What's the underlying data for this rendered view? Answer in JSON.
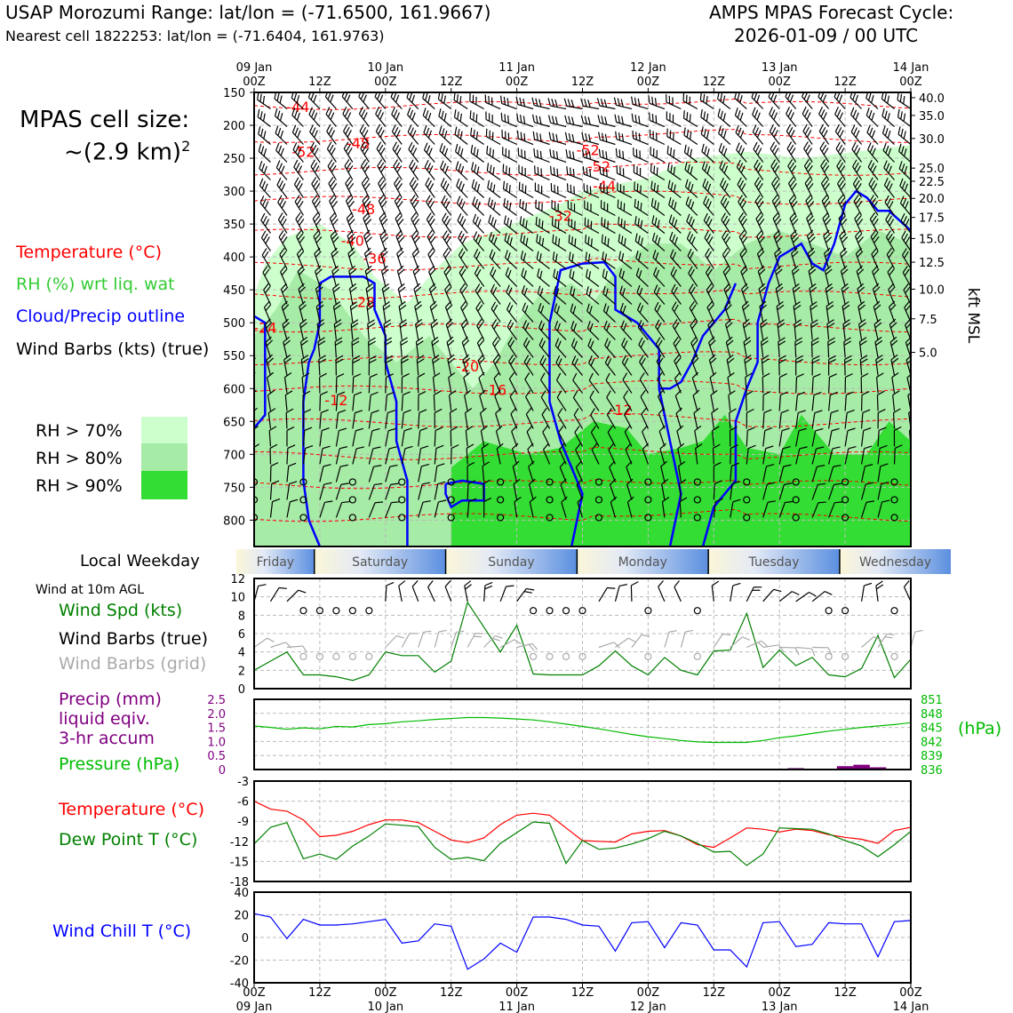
{
  "header": {
    "title_left": "USAP Morozumi Range: lat/lon = (-71.6500, 161.9667)",
    "subtitle_left": "Nearest cell 1822253: lat/lon = (-71.6404, 161.9763)",
    "title_right_1": "AMPS MPAS Forecast Cycle:",
    "title_right_2": "2026-01-09 / 00 UTC"
  },
  "sidebar": {
    "cell_size_1": "MPAS cell size:",
    "cell_size_2": "~(2.9 km)",
    "cell_size_sup": "2",
    "legend_temp": "Temperature (°C)",
    "legend_rh": "RH (%) wrt liq. wat",
    "legend_cloud": "Cloud/Precip outline",
    "legend_wind": "Wind Barbs (kts) (true)",
    "rh70": "RH > 70%",
    "rh80": "RH > 80%",
    "rh90": "RH > 90%",
    "local_weekday": "Local Weekday",
    "wind_10m": "Wind at 10m AGL",
    "wind_spd": "Wind Spd (kts)",
    "wind_barbs_true": "Wind Barbs (true)",
    "wind_barbs_grid": "Wind Barbs (grid)",
    "precip_1": "Precip (mm)",
    "precip_2": "liquid eqiv.",
    "precip_3": "3-hr accum",
    "pressure": "Pressure (hPa)",
    "temperature": "Temperature (°C)",
    "dewpoint": "Dew Point T (°C)",
    "windchill": "Wind Chill T (°C)"
  },
  "colors": {
    "temp": "#ff0000",
    "rh": "#33cc33",
    "cloud": "#0000ff",
    "wind": "#000000",
    "wind_spd": "#008000",
    "wind_grid": "#aaaaaa",
    "precip": "#800080",
    "pressure": "#00bb00",
    "dewpoint": "#008000",
    "windchill": "#0000ff",
    "rh70": "#ccffcc",
    "rh80": "#a6eba6",
    "rh90": "#33dd33"
  },
  "time_axis": {
    "top_labels": [
      [
        "09 Jan",
        "00Z"
      ],
      [
        "",
        "12Z"
      ],
      [
        "10 Jan",
        "00Z"
      ],
      [
        "",
        "12Z"
      ],
      [
        "11 Jan",
        "00Z"
      ],
      [
        "",
        "12Z"
      ],
      [
        "12 Jan",
        "00Z"
      ],
      [
        "",
        "12Z"
      ],
      [
        "13 Jan",
        "00Z"
      ],
      [
        "",
        "12Z"
      ],
      [
        "14 Jan",
        "00Z"
      ]
    ],
    "bottom_labels": [
      [
        "00Z",
        "09 Jan"
      ],
      [
        "12Z",
        ""
      ],
      [
        "00Z",
        "10 Jan"
      ],
      [
        "12Z",
        ""
      ],
      [
        "00Z",
        "11 Jan"
      ],
      [
        "12Z",
        ""
      ],
      [
        "00Z",
        "12 Jan"
      ],
      [
        "12Z",
        ""
      ],
      [
        "00Z",
        "13 Jan"
      ],
      [
        "12Z",
        ""
      ],
      [
        "00Z",
        "14 Jan"
      ]
    ],
    "weekdays": [
      "Friday",
      "Saturday",
      "Sunday",
      "Monday",
      "Tuesday",
      "Wednesday"
    ]
  },
  "chart_data": [
    {
      "type": "heatmap",
      "name": "vertical cross-section",
      "x_hours": [
        0,
        120
      ],
      "y_pressure_hPa": [
        150,
        840
      ],
      "ylabel_right": "kft MSL",
      "pressure_ticks": [
        150,
        200,
        250,
        300,
        350,
        400,
        450,
        500,
        550,
        600,
        650,
        700,
        750,
        800
      ],
      "kft_ticks": [
        {
          "p": 158,
          "label": "40.0"
        },
        {
          "p": 185,
          "label": "35.0"
        },
        {
          "p": 220,
          "label": "30.0"
        },
        {
          "p": 265,
          "label": "25.0"
        },
        {
          "p": 285,
          "label": "22.5"
        },
        {
          "p": 311,
          "label": "20.0"
        },
        {
          "p": 340,
          "label": "17.5"
        },
        {
          "p": 372,
          "label": "15.0"
        },
        {
          "p": 408,
          "label": "12.5"
        },
        {
          "p": 449,
          "label": "10.0"
        },
        {
          "p": 494,
          "label": "7.5"
        },
        {
          "p": 545,
          "label": "5.0"
        }
      ],
      "temp_labels": [
        {
          "t": 8,
          "p": 180,
          "label": "-44"
        },
        {
          "t": 19,
          "p": 235,
          "label": "-48"
        },
        {
          "t": 9,
          "p": 248,
          "label": "-52"
        },
        {
          "t": 20,
          "p": 335,
          "label": "-48"
        },
        {
          "t": 18,
          "p": 383,
          "label": "-40"
        },
        {
          "t": 22,
          "p": 410,
          "label": "-36"
        },
        {
          "t": 20,
          "p": 476,
          "label": "-28"
        },
        {
          "t": 2,
          "p": 515,
          "label": "-24"
        },
        {
          "t": 39,
          "p": 574,
          "label": "-20"
        },
        {
          "t": 44,
          "p": 610,
          "label": "-16"
        },
        {
          "t": 15,
          "p": 625,
          "label": "-12"
        },
        {
          "t": 61,
          "p": 245,
          "label": "-52"
        },
        {
          "t": 63,
          "p": 270,
          "label": "-52"
        },
        {
          "t": 64,
          "p": 300,
          "label": "-44"
        },
        {
          "t": 56,
          "p": 345,
          "label": "-32"
        },
        {
          "t": 67,
          "p": 640,
          "label": "-12"
        }
      ]
    },
    {
      "type": "line",
      "name": "10m wind",
      "ylim": [
        0,
        12
      ],
      "yticks": [
        0,
        2,
        4,
        6,
        8,
        10,
        12
      ],
      "x_hours": [
        0,
        3,
        6,
        9,
        12,
        15,
        18,
        21,
        24,
        27,
        30,
        33,
        36,
        39,
        42,
        45,
        48,
        51,
        54,
        57,
        60,
        63,
        66,
        69,
        72,
        75,
        78,
        81,
        84,
        87,
        90,
        93,
        96,
        99,
        102,
        105,
        108,
        111,
        114,
        117,
        120
      ],
      "wind_speed_kts": [
        2,
        3,
        4,
        1.5,
        1.5,
        1.3,
        0.9,
        1.5,
        4,
        3.6,
        3.6,
        1.8,
        3,
        9.4,
        6.7,
        4,
        6.9,
        1.6,
        1.5,
        1.5,
        1.5,
        2.5,
        4.1,
        2.5,
        1.5,
        3.4,
        2,
        1.5,
        4.1,
        4.2,
        8.2,
        2.3,
        4.2,
        2.5,
        3.4,
        1.5,
        1.3,
        2.2,
        5.8,
        1.2,
        3.2
      ]
    },
    {
      "type": "line",
      "name": "pressure and precip",
      "precip_ylim": [
        0,
        2.5
      ],
      "precip_ticks": [
        "0",
        "0.5",
        "1.0",
        "1.5",
        "2.0",
        "2.5"
      ],
      "pressure_ylim": [
        836,
        851
      ],
      "pressure_ticks": [
        "836",
        "839",
        "842",
        "845",
        "848",
        "851"
      ],
      "pressure_unit": "(hPa)",
      "x_hours": [
        0,
        3,
        6,
        9,
        12,
        15,
        18,
        21,
        24,
        27,
        30,
        33,
        36,
        39,
        42,
        45,
        48,
        51,
        54,
        57,
        60,
        63,
        66,
        69,
        72,
        75,
        78,
        81,
        84,
        87,
        90,
        93,
        96,
        99,
        102,
        105,
        108,
        111,
        114,
        117,
        120
      ],
      "pressure_hPa": [
        845.3,
        845.0,
        844.6,
        844.9,
        844.7,
        845.2,
        845.1,
        845.6,
        845.8,
        846.2,
        846.4,
        846.7,
        846.9,
        847.1,
        847.1,
        847.0,
        846.8,
        846.6,
        846.2,
        845.7,
        845.2,
        844.7,
        844.1,
        843.5,
        843.0,
        842.6,
        842.2,
        841.9,
        841.8,
        841.8,
        841.8,
        842.2,
        842.8,
        843.2,
        843.7,
        844.2,
        844.6,
        845.0,
        845.3,
        845.6,
        846.0
      ],
      "precip_bars": [
        {
          "t": 99,
          "mm": 0.05
        },
        {
          "t": 102,
          "mm": 0.03
        },
        {
          "t": 108,
          "mm": 0.12
        },
        {
          "t": 111,
          "mm": 0.17
        },
        {
          "t": 114,
          "mm": 0.08
        }
      ]
    },
    {
      "type": "line",
      "name": "temperature and dew point",
      "ylim": [
        -18,
        -3
      ],
      "yticks": [
        -18,
        -15,
        -12,
        -9,
        -6,
        -3
      ],
      "x_hours": [
        0,
        3,
        6,
        9,
        12,
        15,
        18,
        21,
        24,
        27,
        30,
        33,
        36,
        39,
        42,
        45,
        48,
        51,
        54,
        57,
        60,
        63,
        66,
        69,
        72,
        75,
        78,
        81,
        84,
        87,
        90,
        93,
        96,
        99,
        102,
        105,
        108,
        111,
        114,
        117,
        120
      ],
      "temperature_C": [
        -6.0,
        -7.2,
        -7.5,
        -8.8,
        -11.3,
        -11.1,
        -10.5,
        -9.5,
        -8.8,
        -8.8,
        -9.2,
        -10.5,
        -11.8,
        -12.2,
        -11.5,
        -9.5,
        -8.1,
        -7.8,
        -8.1,
        -10.0,
        -11.9,
        -12.0,
        -12.1,
        -10.9,
        -10.5,
        -10.4,
        -11.2,
        -12.5,
        -12.9,
        -11.5,
        -10.0,
        -10.2,
        -10.6,
        -10.2,
        -10.4,
        -11.0,
        -11.4,
        -11.7,
        -12.3,
        -10.4,
        -9.9
      ],
      "dewpoint_C": [
        -12.4,
        -9.9,
        -9.2,
        -14.6,
        -13.9,
        -14.7,
        -12.7,
        -11.2,
        -9.4,
        -9.6,
        -9.8,
        -12.9,
        -14.7,
        -14.4,
        -14.9,
        -12.3,
        -10.7,
        -9.1,
        -9.3,
        -15.3,
        -11.9,
        -13.2,
        -13.0,
        -12.4,
        -11.6,
        -10.5,
        -11.2,
        -12.3,
        -13.6,
        -13.5,
        -15.6,
        -13.9,
        -10.0,
        -10.1,
        -10.2,
        -10.9,
        -11.9,
        -12.7,
        -14.3,
        -12.5,
        -10.5
      ]
    },
    {
      "type": "line",
      "name": "wind chill",
      "ylim": [
        -40,
        40
      ],
      "yticks": [
        -40,
        -20,
        0,
        20,
        40
      ],
      "x_hours": [
        0,
        3,
        6,
        9,
        12,
        15,
        18,
        21,
        24,
        27,
        30,
        33,
        36,
        39,
        42,
        45,
        48,
        51,
        54,
        57,
        60,
        63,
        66,
        69,
        72,
        75,
        78,
        81,
        84,
        87,
        90,
        93,
        96,
        99,
        102,
        105,
        108,
        111,
        114,
        117,
        120
      ],
      "windchill_C": [
        21,
        18,
        -1,
        16,
        11,
        11,
        12,
        14,
        16,
        -5,
        -3,
        12,
        10,
        -28,
        -19,
        -5,
        -13,
        18,
        18,
        16,
        11,
        10,
        -12,
        13,
        14,
        -9,
        13,
        11,
        -11,
        -11,
        -26,
        13,
        14,
        -8,
        -6,
        13,
        12,
        12,
        -17,
        14,
        15
      ]
    }
  ]
}
